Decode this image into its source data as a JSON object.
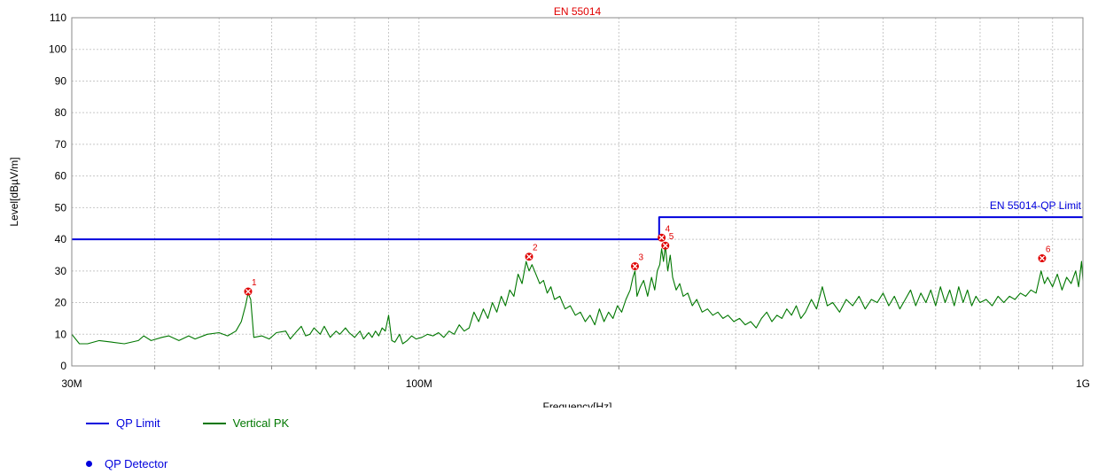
{
  "chart_data": {
    "type": "line",
    "title": "EN 55014",
    "xlabel": "Frequency[Hz]",
    "ylabel": "Level[dBµV/m]",
    "x_scale": "log",
    "xlim": [
      30000000,
      1000000000
    ],
    "ylim": [
      0,
      110
    ],
    "y_ticks": [
      0,
      10,
      20,
      30,
      40,
      50,
      60,
      70,
      80,
      90,
      100,
      110
    ],
    "x_tick_labels": [
      {
        "value": 30000000,
        "label": "30M"
      },
      {
        "value": 100000000,
        "label": "100M"
      },
      {
        "value": 1000000000,
        "label": "1G"
      }
    ],
    "x_minor_ticks": [
      40000000,
      50000000,
      60000000,
      70000000,
      80000000,
      90000000,
      200000000,
      300000000,
      400000000,
      500000000,
      600000000,
      700000000,
      800000000,
      900000000
    ],
    "grid": true,
    "limit_label": "EN 55014-QP Limit",
    "series": [
      {
        "name": "QP Limit",
        "color": "#0000dd",
        "points": [
          [
            30000000,
            40
          ],
          [
            230000000,
            40
          ],
          [
            230000000,
            47
          ],
          [
            1000000000,
            47
          ]
        ]
      },
      {
        "name": "Vertical PK",
        "color": "#007700",
        "points": [
          [
            30000000,
            10
          ],
          [
            30800000,
            7
          ],
          [
            31700000,
            7
          ],
          [
            33000000,
            8
          ],
          [
            34500000,
            7.5
          ],
          [
            36000000,
            7
          ],
          [
            37800000,
            8
          ],
          [
            38500000,
            9.5
          ],
          [
            39500000,
            8
          ],
          [
            41000000,
            9
          ],
          [
            42000000,
            9.5
          ],
          [
            43500000,
            8
          ],
          [
            45000000,
            9.5
          ],
          [
            46000000,
            8.5
          ],
          [
            48000000,
            10
          ],
          [
            50000000,
            10.5
          ],
          [
            51500000,
            9.5
          ],
          [
            53000000,
            11
          ],
          [
            54000000,
            14
          ],
          [
            54800000,
            19
          ],
          [
            55300000,
            23
          ],
          [
            55800000,
            21
          ],
          [
            56400000,
            9
          ],
          [
            58000000,
            9.5
          ],
          [
            59500000,
            8.5
          ],
          [
            61000000,
            10.5
          ],
          [
            63000000,
            11
          ],
          [
            64000000,
            8.5
          ],
          [
            65500000,
            11
          ],
          [
            66500000,
            12.5
          ],
          [
            67500000,
            9.5
          ],
          [
            68500000,
            10
          ],
          [
            69500000,
            12
          ],
          [
            71000000,
            10
          ],
          [
            72000000,
            12.5
          ],
          [
            73500000,
            9
          ],
          [
            75000000,
            11
          ],
          [
            76000000,
            10
          ],
          [
            77500000,
            12
          ],
          [
            78500000,
            10.5
          ],
          [
            80000000,
            9
          ],
          [
            81500000,
            11
          ],
          [
            82500000,
            8.5
          ],
          [
            84000000,
            10.5
          ],
          [
            85000000,
            9
          ],
          [
            86000000,
            11
          ],
          [
            87000000,
            9.5
          ],
          [
            88000000,
            12
          ],
          [
            89000000,
            11
          ],
          [
            90000000,
            16
          ],
          [
            91000000,
            8
          ],
          [
            92000000,
            7.5
          ],
          [
            93500000,
            10
          ],
          [
            94500000,
            7
          ],
          [
            96000000,
            8
          ],
          [
            97500000,
            9.5
          ],
          [
            99000000,
            8.5
          ],
          [
            101000000,
            9
          ],
          [
            103000000,
            10
          ],
          [
            105000000,
            9.5
          ],
          [
            107000000,
            10.5
          ],
          [
            109000000,
            9
          ],
          [
            111000000,
            11
          ],
          [
            113000000,
            10
          ],
          [
            115000000,
            13
          ],
          [
            117000000,
            11
          ],
          [
            119000000,
            12
          ],
          [
            121000000,
            17
          ],
          [
            123000000,
            14
          ],
          [
            125000000,
            18
          ],
          [
            127000000,
            15
          ],
          [
            129000000,
            20
          ],
          [
            131000000,
            17
          ],
          [
            133000000,
            22
          ],
          [
            135000000,
            19
          ],
          [
            137000000,
            24
          ],
          [
            139000000,
            22
          ],
          [
            141000000,
            29
          ],
          [
            143000000,
            26
          ],
          [
            145000000,
            33
          ],
          [
            146500000,
            30
          ],
          [
            148000000,
            32
          ],
          [
            150000000,
            29
          ],
          [
            152000000,
            26
          ],
          [
            154000000,
            27
          ],
          [
            156000000,
            23
          ],
          [
            158000000,
            25
          ],
          [
            160000000,
            21
          ],
          [
            163000000,
            22
          ],
          [
            166000000,
            18
          ],
          [
            169000000,
            19
          ],
          [
            172000000,
            16
          ],
          [
            175000000,
            17
          ],
          [
            178000000,
            14
          ],
          [
            181000000,
            16
          ],
          [
            184000000,
            13
          ],
          [
            187000000,
            18
          ],
          [
            190000000,
            14
          ],
          [
            193000000,
            17
          ],
          [
            196000000,
            15
          ],
          [
            199000000,
            19
          ],
          [
            202000000,
            17
          ],
          [
            205000000,
            21
          ],
          [
            208000000,
            24
          ],
          [
            210000000,
            28
          ],
          [
            211500000,
            30
          ],
          [
            213000000,
            22
          ],
          [
            215500000,
            25
          ],
          [
            218000000,
            27
          ],
          [
            221000000,
            22
          ],
          [
            224000000,
            28
          ],
          [
            226500000,
            24
          ],
          [
            228500000,
            30
          ],
          [
            230500000,
            32
          ],
          [
            232000000,
            37
          ],
          [
            233500000,
            33
          ],
          [
            235000000,
            38
          ],
          [
            237000000,
            30
          ],
          [
            239000000,
            35
          ],
          [
            241000000,
            28
          ],
          [
            244000000,
            24
          ],
          [
            247000000,
            26
          ],
          [
            250000000,
            22
          ],
          [
            254000000,
            23
          ],
          [
            258000000,
            19
          ],
          [
            262000000,
            21
          ],
          [
            267000000,
            17
          ],
          [
            272000000,
            18
          ],
          [
            277000000,
            16
          ],
          [
            282000000,
            17
          ],
          [
            287000000,
            15
          ],
          [
            292000000,
            16
          ],
          [
            298000000,
            14
          ],
          [
            304000000,
            15
          ],
          [
            310000000,
            13
          ],
          [
            316000000,
            14
          ],
          [
            322000000,
            12
          ],
          [
            328000000,
            15
          ],
          [
            334000000,
            17
          ],
          [
            340000000,
            14
          ],
          [
            346000000,
            16
          ],
          [
            352000000,
            15
          ],
          [
            358000000,
            18
          ],
          [
            364000000,
            16
          ],
          [
            370000000,
            19
          ],
          [
            376000000,
            15
          ],
          [
            382000000,
            17
          ],
          [
            390000000,
            21
          ],
          [
            397000000,
            18
          ],
          [
            405000000,
            25
          ],
          [
            412000000,
            19
          ],
          [
            420000000,
            20
          ],
          [
            430000000,
            17
          ],
          [
            440000000,
            21
          ],
          [
            450000000,
            19
          ],
          [
            460000000,
            22
          ],
          [
            470000000,
            18
          ],
          [
            480000000,
            21
          ],
          [
            490000000,
            20
          ],
          [
            500000000,
            23
          ],
          [
            510000000,
            19
          ],
          [
            520000000,
            22
          ],
          [
            530000000,
            18
          ],
          [
            540000000,
            21
          ],
          [
            550000000,
            24
          ],
          [
            560000000,
            19
          ],
          [
            570000000,
            23
          ],
          [
            580000000,
            20
          ],
          [
            590000000,
            24
          ],
          [
            600000000,
            19
          ],
          [
            610000000,
            25
          ],
          [
            620000000,
            20
          ],
          [
            630000000,
            24
          ],
          [
            640000000,
            19
          ],
          [
            650000000,
            25
          ],
          [
            660000000,
            20
          ],
          [
            670000000,
            24
          ],
          [
            680000000,
            19
          ],
          [
            690000000,
            22
          ],
          [
            700000000,
            20
          ],
          [
            715000000,
            21
          ],
          [
            730000000,
            19
          ],
          [
            745000000,
            22
          ],
          [
            760000000,
            20
          ],
          [
            775000000,
            22
          ],
          [
            790000000,
            21
          ],
          [
            805000000,
            23
          ],
          [
            820000000,
            22
          ],
          [
            835000000,
            24
          ],
          [
            850000000,
            23
          ],
          [
            865000000,
            30
          ],
          [
            875000000,
            26
          ],
          [
            885000000,
            28
          ],
          [
            900000000,
            25
          ],
          [
            915000000,
            29
          ],
          [
            930000000,
            24
          ],
          [
            945000000,
            28
          ],
          [
            960000000,
            26
          ],
          [
            975000000,
            30
          ],
          [
            985000000,
            25
          ],
          [
            995000000,
            33
          ],
          [
            1000000000,
            27
          ]
        ]
      }
    ],
    "markers": [
      {
        "label": "1",
        "freq": 55300000,
        "level": 23.5
      },
      {
        "label": "2",
        "freq": 146500000,
        "level": 34.5
      },
      {
        "label": "3",
        "freq": 211500000,
        "level": 31.5
      },
      {
        "label": "4",
        "freq": 232000000,
        "level": 40.5
      },
      {
        "label": "5",
        "freq": 235000000,
        "level": 38
      },
      {
        "label": "6",
        "freq": 868000000,
        "level": 34
      }
    ],
    "legend": [
      {
        "label": "QP Limit",
        "kind": "line",
        "color": "#0000dd"
      },
      {
        "label": "Vertical PK",
        "kind": "line",
        "color": "#007700"
      },
      {
        "label": "QP Detector",
        "kind": "dot",
        "color": "#0000dd"
      }
    ]
  }
}
